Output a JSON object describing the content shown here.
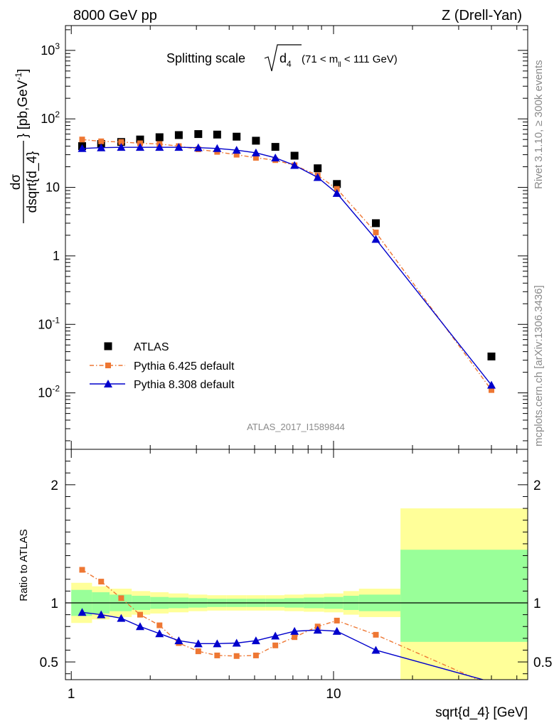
{
  "header": {
    "left": "8000 GeV pp",
    "right": "Z (Drell-Yan)"
  },
  "side_text": {
    "top": "Rivet 3.1.10, ≥ 300k events",
    "bottom": "mcplots.cern.ch [arXiv:1306.3436]"
  },
  "analysis_tag": "ATLAS_2017_I1589844",
  "chart_data": [
    {
      "type": "line",
      "title": "Splitting scale √d4 (71 < m_ll < 111 GeV)",
      "title_main": "Splitting scale",
      "title_sub": "4",
      "title_range": "(71 < m",
      "title_range_sub": "ll",
      "title_range_end": " < 111 GeV)",
      "ylabel": "dσ/dsqrt{d_4} [pb,GeV^-1]",
      "ylabel_num": "dσ",
      "ylabel_den": "dsqrt{d_4}",
      "ylabel_unit": "} [pb,GeV",
      "ylabel_unit_sup": "-1",
      "ylabel_unit_end": "]",
      "yscale": "log",
      "ylim": [
        0.0015,
        2300
      ],
      "xscale": "log",
      "xlim": [
        0.95,
        55
      ],
      "yticks": [
        {
          "value": 0.01,
          "label": "10",
          "sup": "-2"
        },
        {
          "value": 0.1,
          "label": "10",
          "sup": "-1"
        },
        {
          "value": 1,
          "label": "1",
          "sup": ""
        },
        {
          "value": 10,
          "label": "10",
          "sup": ""
        },
        {
          "value": 100,
          "label": "10",
          "sup": "2"
        },
        {
          "value": 1000,
          "label": "10",
          "sup": "3"
        }
      ],
      "legend_position": "lower-left",
      "series": [
        {
          "name": "ATLAS",
          "color": "#000000",
          "marker": "square",
          "x": [
            1.1,
            1.3,
            1.55,
            1.83,
            2.17,
            2.57,
            3.05,
            3.6,
            4.27,
            5.06,
            6.0,
            7.1,
            8.7,
            10.3,
            14.5,
            40.0
          ],
          "y": [
            40,
            43,
            46,
            50,
            54,
            58,
            60,
            59,
            55,
            48,
            39,
            29,
            19,
            11.2,
            3.0,
            0.034
          ]
        },
        {
          "name": "Pythia 6.425 default",
          "color": "#ee7733",
          "marker": "square-small",
          "dash": "dashdot",
          "x": [
            1.1,
            1.3,
            1.55,
            1.83,
            2.17,
            2.57,
            3.05,
            3.6,
            4.27,
            5.06,
            6.0,
            7.1,
            8.7,
            10.3,
            14.5,
            40.0
          ],
          "y": [
            50,
            47,
            46,
            44,
            43,
            40,
            36,
            33,
            30,
            27,
            25,
            21,
            15,
            9.5,
            2.2,
            0.011
          ]
        },
        {
          "name": "Pythia 8.308 default",
          "color": "#0000cc",
          "marker": "triangle",
          "x": [
            1.1,
            1.3,
            1.55,
            1.83,
            2.17,
            2.57,
            3.05,
            3.6,
            4.27,
            5.06,
            6.0,
            7.1,
            8.7,
            10.3,
            14.5,
            40.0
          ],
          "y": [
            37,
            38,
            38.5,
            38.5,
            38.5,
            38.5,
            38,
            37,
            35,
            32,
            27,
            21,
            14,
            8.2,
            1.75,
            0.013
          ]
        }
      ]
    },
    {
      "type": "line",
      "ylabel": "Ratio to ATLAS",
      "xlabel": "sqrt{d_4} [GeV]",
      "xscale": "log",
      "xlim": [
        0.95,
        55
      ],
      "ylim": [
        0.35,
        2.3
      ],
      "xticks": [
        {
          "value": 1,
          "label": "1"
        },
        {
          "value": 10,
          "label": "10"
        }
      ],
      "yticks_left": [
        {
          "value": 0.5,
          "label": "0.5"
        },
        {
          "value": 1,
          "label": "1"
        },
        {
          "value": 2,
          "label": "2"
        }
      ],
      "yticks_right": [
        {
          "value": 0.5,
          "label": "0.5"
        },
        {
          "value": 1,
          "label": "1"
        },
        {
          "value": 2,
          "label": "2"
        }
      ],
      "bins": [
        1.0,
        1.2,
        1.4,
        1.7,
        2.0,
        2.35,
        2.8,
        3.3,
        3.9,
        4.65,
        5.5,
        6.5,
        7.7,
        9.2,
        10.9,
        12.5,
        18.0,
        55.0
      ],
      "band_stat_lo": [
        0.89,
        0.91,
        0.93,
        0.94,
        0.95,
        0.955,
        0.96,
        0.965,
        0.965,
        0.965,
        0.965,
        0.96,
        0.955,
        0.95,
        0.94,
        0.93,
        0.67
      ],
      "band_stat_hi": [
        1.11,
        1.09,
        1.07,
        1.06,
        1.05,
        1.045,
        1.04,
        1.035,
        1.035,
        1.035,
        1.035,
        1.04,
        1.045,
        1.05,
        1.06,
        1.07,
        1.45
      ],
      "band_tot_lo": [
        0.83,
        0.86,
        0.88,
        0.9,
        0.91,
        0.92,
        0.93,
        0.935,
        0.935,
        0.935,
        0.935,
        0.93,
        0.925,
        0.92,
        0.9,
        0.88,
        0.33
      ],
      "band_tot_hi": [
        1.17,
        1.14,
        1.12,
        1.1,
        1.09,
        1.08,
        1.07,
        1.065,
        1.065,
        1.065,
        1.065,
        1.07,
        1.075,
        1.08,
        1.1,
        1.12,
        1.8
      ],
      "series": [
        {
          "name": "Pythia 6.425 default",
          "color": "#ee7733",
          "marker": "square-small",
          "dash": "dashdot",
          "x": [
            1.1,
            1.3,
            1.55,
            1.83,
            2.17,
            2.57,
            3.05,
            3.6,
            4.27,
            5.06,
            6.0,
            7.1,
            8.7,
            10.3,
            14.5,
            40.0
          ],
          "y": [
            1.28,
            1.18,
            1.04,
            0.9,
            0.81,
            0.66,
            0.59,
            0.555,
            0.55,
            0.555,
            0.64,
            0.71,
            0.8,
            0.85,
            0.73,
            0.3
          ]
        },
        {
          "name": "Pythia 8.308 default",
          "color": "#0000cc",
          "marker": "triangle",
          "x": [
            1.1,
            1.3,
            1.55,
            1.83,
            2.17,
            2.57,
            3.05,
            3.6,
            4.27,
            5.06,
            6.0,
            7.1,
            8.7,
            10.3,
            14.5,
            40.0
          ],
          "y": [
            0.92,
            0.9,
            0.87,
            0.8,
            0.74,
            0.68,
            0.655,
            0.655,
            0.66,
            0.68,
            0.72,
            0.76,
            0.77,
            0.76,
            0.6,
            0.33
          ]
        }
      ]
    }
  ]
}
